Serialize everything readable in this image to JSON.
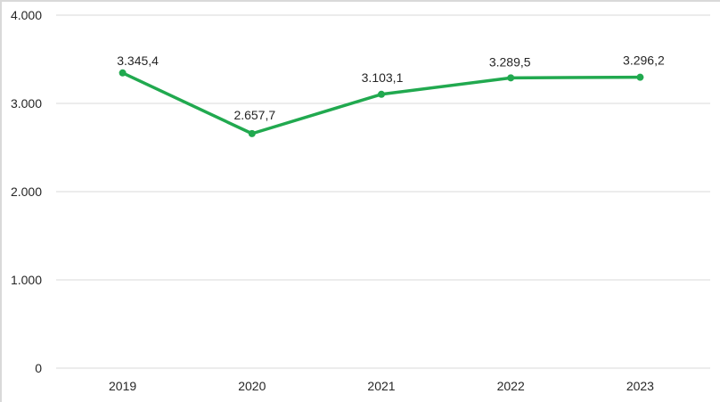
{
  "chart_data": {
    "type": "line",
    "title": "",
    "categories": [
      "2019",
      "2020",
      "2021",
      "2022",
      "2023"
    ],
    "series": [
      {
        "name": "series-1",
        "values": [
          3345.4,
          2657.7,
          3103.1,
          3289.5,
          3296.2
        ],
        "labels": [
          "3.345,4",
          "2.657,7",
          "3.103,1",
          "3.289,5",
          "3.296,2"
        ],
        "color": "#21a94f"
      }
    ],
    "ylim": [
      0,
      4000
    ],
    "yticks": [
      {
        "value": 0,
        "label": "0"
      },
      {
        "value": 1000,
        "label": "1.000"
      },
      {
        "value": 2000,
        "label": "2.000"
      },
      {
        "value": 3000,
        "label": "3.000"
      },
      {
        "value": 4000,
        "label": "4.000"
      }
    ],
    "xlabel": "",
    "ylabel": "",
    "legend": "none",
    "grid": true,
    "gridline_color": "#d9d9d9",
    "text_color": "#262626",
    "background_color": "#ffffff",
    "marker": "circle"
  }
}
